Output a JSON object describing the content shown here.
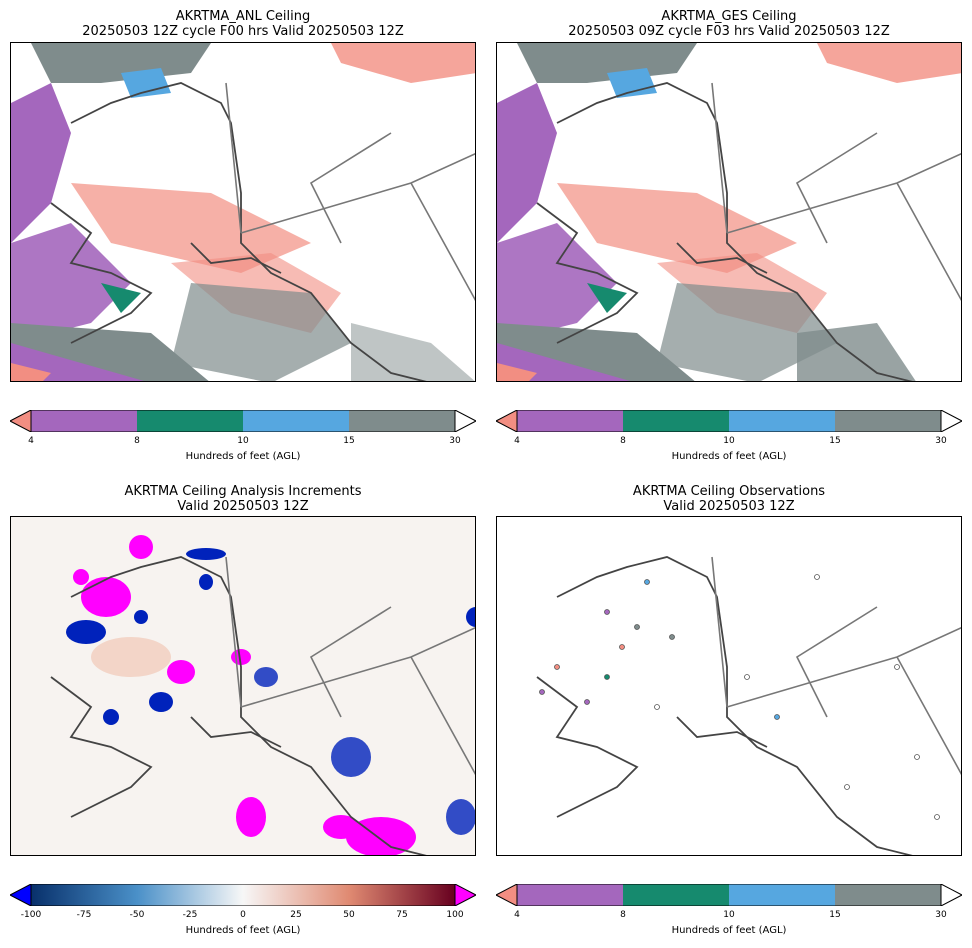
{
  "panels": [
    {
      "title_line1": "AKRTMA_ANL Ceiling",
      "title_line2": "20250503 12Z cycle F00 hrs Valid 20250503 12Z"
    },
    {
      "title_line1": "AKRTMA_GES Ceiling",
      "title_line2": "20250503 09Z cycle F03 hrs Valid 20250503 12Z"
    },
    {
      "title_line1": "AKRTMA Ceiling Analysis Increments",
      "title_line2": "Valid 20250503 12Z"
    },
    {
      "title_line1": "AKRTMA Ceiling Observations",
      "title_line2": "Valid 20250503 12Z"
    }
  ],
  "ceiling_colorbar": {
    "label": "Hundreds of feet (AGL)",
    "ticks": [
      "4",
      "8",
      "10",
      "15",
      "30"
    ],
    "colors": {
      "under": "#f28e82",
      "c1": "#a467bd",
      "c2": "#168a6e",
      "c3": "#56a7e0",
      "c4": "#7f8c8c",
      "over": "#ffffff"
    }
  },
  "increment_colorbar": {
    "label": "Hundreds of feet (AGL)",
    "ticks": [
      "-100",
      "-75",
      "-50",
      "-25",
      "0",
      "25",
      "50",
      "75",
      "100"
    ],
    "colors": {
      "under": "#0000ff",
      "over": "#ff00ff"
    }
  }
}
